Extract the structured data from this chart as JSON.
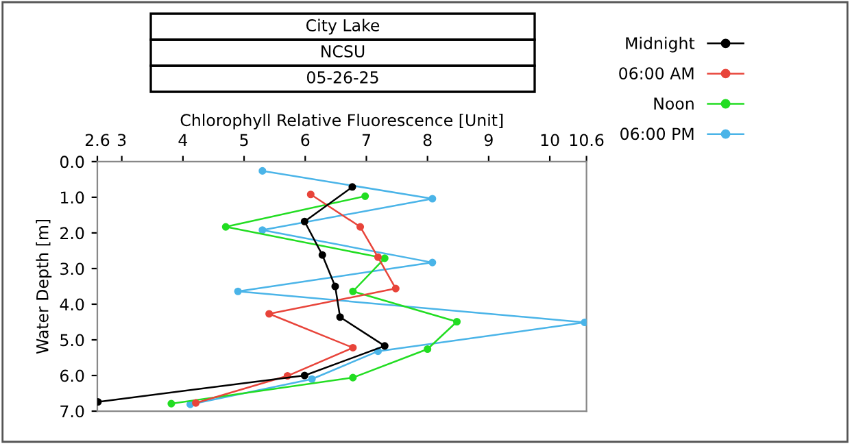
{
  "chart_data": {
    "type": "line",
    "title": "City Lake",
    "subtitle": "NCSU",
    "annotations": [
      "05-26-25"
    ],
    "xlabel": "Chlorophyll Relative Fluorescence [Unit]",
    "ylabel": "Water Depth [m]",
    "xlim": [
      2.6,
      10.6
    ],
    "xticks": [
      2.6,
      3,
      4,
      5,
      6,
      7,
      8,
      9,
      10,
      10.6
    ],
    "ylim": [
      7,
      0
    ],
    "yticks": [
      {
        "value": 0,
        "label": "0.0"
      },
      {
        "value": 1,
        "label": "1.0"
      },
      {
        "value": 2,
        "label": "2.0"
      },
      {
        "value": 3,
        "label": "3.0"
      },
      {
        "value": 4,
        "label": "4.0"
      },
      {
        "value": 5,
        "label": "5.0"
      },
      {
        "value": 6,
        "label": "6.0"
      },
      {
        "value": 7,
        "label": "7.0"
      }
    ],
    "grid": false,
    "legend": "right",
    "marker": "circle",
    "line_style": "solid",
    "series": [
      {
        "name": "Midnight",
        "color": "#000000",
        "x": [
          6.77,
          5.99,
          6.28,
          6.49,
          6.57,
          7.3,
          5.99,
          2.61
        ],
        "values": [
          0.71,
          1.68,
          2.62,
          3.5,
          4.36,
          5.17,
          6.0,
          6.74
        ]
      },
      {
        "name": "06:00 AM",
        "color": "#e8443a",
        "x": [
          6.09,
          6.9,
          7.19,
          7.48,
          5.41,
          6.78,
          5.71,
          4.21
        ],
        "values": [
          0.92,
          1.83,
          2.68,
          3.56,
          4.27,
          5.22,
          6.01,
          6.77
        ]
      },
      {
        "name": "Noon",
        "color": "#22dd22",
        "x": [
          6.98,
          4.7,
          7.3,
          6.78,
          8.48,
          8.0,
          6.78,
          3.81
        ],
        "values": [
          0.97,
          1.83,
          2.71,
          3.64,
          4.49,
          5.26,
          6.06,
          6.79
        ]
      },
      {
        "name": "06:00 PM",
        "color": "#4ab4e8",
        "x": [
          5.3,
          8.08,
          5.3,
          8.08,
          4.9,
          10.57,
          7.19,
          6.11,
          4.12
        ],
        "values": [
          0.26,
          1.04,
          1.92,
          2.83,
          3.64,
          4.51,
          5.32,
          6.1,
          6.81
        ]
      }
    ]
  }
}
